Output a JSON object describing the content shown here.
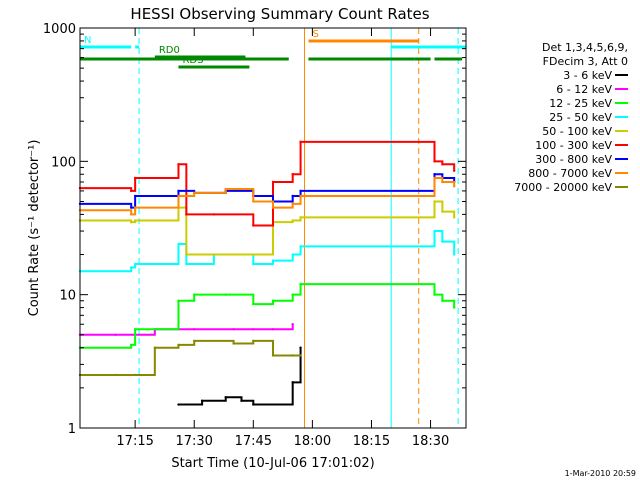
{
  "chart_data": {
    "type": "line",
    "title": "HESSI Observing Summary Count Rates",
    "xlabel": "Start Time (10-Jul-06 17:01:02)",
    "ylabel": "Count Rate (s⁻¹ detector⁻¹)",
    "yscale": "log",
    "ylim": [
      1,
      1000
    ],
    "xlim": [
      "17:01",
      "18:39"
    ],
    "grid": false,
    "legend_position": "right",
    "x_ticks": [
      "17:15",
      "17:30",
      "17:45",
      "18:00",
      "18:15",
      "18:30"
    ],
    "y_ticks": [
      "1",
      "10",
      "100",
      "1000"
    ],
    "legend_header": [
      "Det 1,3,4,5,6,9,",
      "FDecim 3, Att 0"
    ],
    "series": [
      {
        "name": "3 - 6 keV",
        "color": "#000000",
        "x": [
          "17:26",
          "17:32",
          "17:38",
          "17:42",
          "17:45",
          "17:55",
          "17:57"
        ],
        "y": [
          1.5,
          1.6,
          1.7,
          1.6,
          1.5,
          2.2,
          4.0
        ]
      },
      {
        "name": "6 - 12 keV",
        "color": "#ff00ff",
        "x": [
          "17:01",
          "17:10",
          "17:15",
          "17:20",
          "17:26",
          "17:30",
          "17:40",
          "17:45",
          "17:50",
          "17:55"
        ],
        "y": [
          5.0,
          5.0,
          5.0,
          5.5,
          5.5,
          5.5,
          5.5,
          5.5,
          5.5,
          6.0
        ]
      },
      {
        "name": "12 - 25 keV",
        "color": "#00ff00",
        "x": [
          "17:01",
          "17:14",
          "17:15",
          "17:26",
          "17:30",
          "17:38",
          "17:45",
          "17:50",
          "17:55",
          "17:57",
          "18:31",
          "18:33",
          "18:36"
        ],
        "y": [
          4.0,
          4.2,
          5.5,
          9.0,
          10.0,
          10.0,
          8.5,
          9.0,
          10.0,
          12.0,
          10.0,
          9.0,
          8.0
        ]
      },
      {
        "name": "25 - 50 keV",
        "color": "#00ffff",
        "x": [
          "17:01",
          "17:14",
          "17:15",
          "17:26",
          "17:28",
          "17:35",
          "17:45",
          "17:50",
          "17:55",
          "17:57",
          "18:31",
          "18:33",
          "18:36"
        ],
        "y": [
          15.0,
          16.0,
          17.0,
          24.0,
          17.0,
          20.0,
          17.0,
          18.0,
          20.0,
          23.0,
          30.0,
          25.0,
          20.0
        ]
      },
      {
        "name": "50 - 100 keV",
        "color": "#cccc00",
        "x": [
          "17:01",
          "17:14",
          "17:15",
          "17:26",
          "17:28",
          "17:35",
          "17:45",
          "17:50",
          "17:55",
          "17:57",
          "18:31",
          "18:33",
          "18:36"
        ],
        "y": [
          36.0,
          35.0,
          36.0,
          45.0,
          20.0,
          20.0,
          20.0,
          35.0,
          36.0,
          38.0,
          50.0,
          42.0,
          38.0
        ]
      },
      {
        "name": "100 - 300 keV",
        "color": "#ff0000",
        "x": [
          "17:01",
          "17:14",
          "17:15",
          "17:26",
          "17:28",
          "17:35",
          "17:45",
          "17:50",
          "17:55",
          "17:57",
          "18:31",
          "18:33",
          "18:36"
        ],
        "y": [
          63.0,
          60.0,
          75.0,
          95.0,
          40.0,
          40.0,
          33.0,
          70.0,
          80.0,
          140.0,
          100.0,
          95.0,
          85.0
        ]
      },
      {
        "name": "300 - 800 keV",
        "color": "#0000ff",
        "x": [
          "17:01",
          "17:14",
          "17:15",
          "17:26",
          "17:30",
          "17:38",
          "17:45",
          "17:50",
          "17:55",
          "17:57",
          "18:31",
          "18:33",
          "18:36"
        ],
        "y": [
          48.0,
          45.0,
          55.0,
          60.0,
          58.0,
          60.0,
          55.0,
          50.0,
          55.0,
          60.0,
          80.0,
          75.0,
          70.0
        ]
      },
      {
        "name": "800 - 7000 keV",
        "color": "#ff8800",
        "x": [
          "17:01",
          "17:14",
          "17:15",
          "17:26",
          "17:30",
          "17:38",
          "17:45",
          "17:50",
          "17:55",
          "17:57",
          "18:31",
          "18:33",
          "18:36"
        ],
        "y": [
          43.0,
          40.0,
          45.0,
          55.0,
          58.0,
          62.0,
          50.0,
          45.0,
          48.0,
          55.0,
          75.0,
          70.0,
          65.0
        ]
      },
      {
        "name": "7000 - 20000 keV",
        "color": "#888800",
        "x": [
          "17:01",
          "17:10",
          "17:15",
          "17:20",
          "17:26",
          "17:30",
          "17:40",
          "17:45",
          "17:50",
          "17:55",
          "17:57"
        ],
        "y": [
          2.5,
          2.5,
          2.5,
          4.0,
          4.2,
          4.5,
          4.3,
          4.5,
          3.5,
          3.5,
          3.5
        ]
      }
    ],
    "flag_bars": [
      {
        "label": "N",
        "color": "#00ffff",
        "segments": [
          [
            "17:01",
            "17:14"
          ],
          [
            "17:15",
            "17:16"
          ],
          [
            "18:20",
            "18:39"
          ]
        ]
      },
      {
        "label": "S",
        "color": "#ff8800",
        "segments": [
          [
            "17:59",
            "18:27"
          ]
        ]
      },
      {
        "label": "",
        "color": "#008800",
        "segments": [
          [
            "17:01",
            "17:54"
          ],
          [
            "17:59",
            "18:26"
          ],
          [
            "18:26",
            "18:30"
          ],
          [
            "18:31",
            "18:38"
          ]
        ]
      },
      {
        "label": "RDS",
        "color": "#008800",
        "segments": [
          [
            "17:26",
            "17:44"
          ]
        ]
      },
      {
        "label": "RD0",
        "color": "#008800",
        "segments": [
          [
            "17:20",
            "17:43"
          ]
        ]
      }
    ],
    "markers": [
      {
        "x": "17:16",
        "color": "#00ffff",
        "style": "dashed"
      },
      {
        "x": "17:58",
        "color": "#ff8800",
        "style": "solid"
      },
      {
        "x": "18:20",
        "color": "#00ffff",
        "style": "solid"
      },
      {
        "x": "18:27",
        "color": "#ff8800",
        "style": "dashed"
      },
      {
        "x": "18:37",
        "color": "#00ffff",
        "style": "dashed"
      }
    ]
  },
  "footer": {
    "timestamp": "1-Mar-2010 20:59"
  }
}
